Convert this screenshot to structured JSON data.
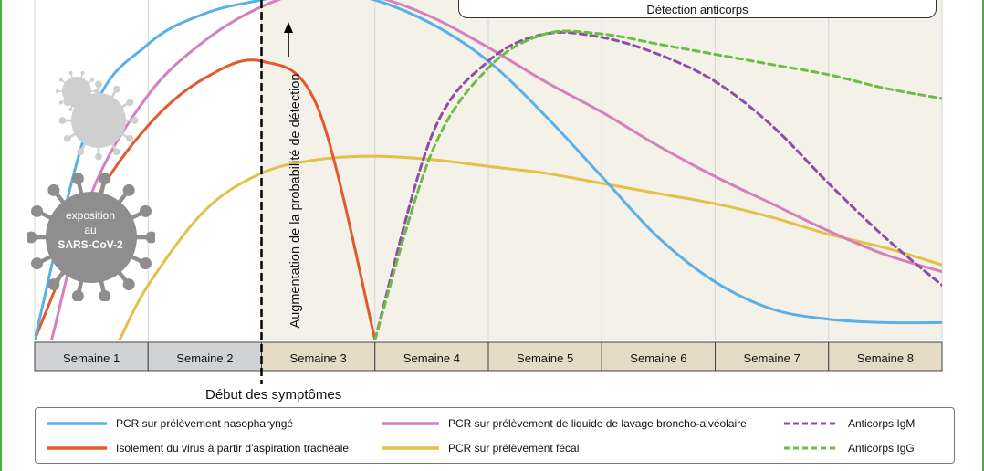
{
  "chart_data": {
    "type": "line",
    "x_unit": "week",
    "xlim": [
      0,
      8
    ],
    "ylim": [
      0,
      1
    ],
    "categories": [
      "Semaine 1",
      "Semaine 2",
      "Semaine 3",
      "Semaine 4",
      "Semaine 5",
      "Semaine 6",
      "Semaine 7",
      "Semaine 8"
    ],
    "symptom_onset_week": 2.0,
    "onset_label": "Début des symptômes",
    "arrow_label": "Augmentation de la probabilité de détection",
    "antibody_banner": "Détection anticorps",
    "exposure_label": [
      "exposition",
      "au",
      "SARS-CoV-2"
    ],
    "series": [
      {
        "name": "PCR sur prélèvement nasopharyngé",
        "color": "#5bb0e8",
        "dash": false,
        "points": [
          [
            0,
            0
          ],
          [
            0.5,
            0.66
          ],
          [
            1,
            0.87
          ],
          [
            1.5,
            0.96
          ],
          [
            2,
            1.0
          ],
          [
            2.5,
            1.03
          ],
          [
            3,
            1.0
          ],
          [
            3.5,
            0.93
          ],
          [
            4,
            0.82
          ],
          [
            4.5,
            0.66
          ],
          [
            5,
            0.48
          ],
          [
            5.5,
            0.3
          ],
          [
            6,
            0.17
          ],
          [
            6.5,
            0.09
          ],
          [
            7,
            0.06
          ],
          [
            7.5,
            0.05
          ],
          [
            8,
            0.05
          ]
        ]
      },
      {
        "name": "PCR sur prélèvement de liquide de lavage broncho-alvéolaire",
        "color": "#d57fbc",
        "dash": false,
        "points": [
          [
            0.15,
            0
          ],
          [
            0.5,
            0.43
          ],
          [
            1,
            0.72
          ],
          [
            1.5,
            0.88
          ],
          [
            2,
            0.98
          ],
          [
            2.5,
            1.03
          ],
          [
            3,
            1.01
          ],
          [
            3.5,
            0.95
          ],
          [
            4,
            0.86
          ],
          [
            4.5,
            0.76
          ],
          [
            5,
            0.67
          ],
          [
            5.5,
            0.57
          ],
          [
            6,
            0.48
          ],
          [
            6.5,
            0.4
          ],
          [
            7,
            0.32
          ],
          [
            7.5,
            0.25
          ],
          [
            8,
            0.2
          ]
        ]
      },
      {
        "name": "Isolement du virus à partir d'aspiration trachéale",
        "color": "#e05a2b",
        "dash": false,
        "points": [
          [
            0,
            0
          ],
          [
            0.5,
            0.39
          ],
          [
            1,
            0.63
          ],
          [
            1.5,
            0.77
          ],
          [
            2,
            0.82
          ],
          [
            2.5,
            0.68
          ],
          [
            3,
            0
          ]
        ]
      },
      {
        "name": "PCR sur prélèvement fécal",
        "color": "#e2c04a",
        "dash": false,
        "points": [
          [
            0.75,
            0
          ],
          [
            1,
            0.16
          ],
          [
            1.5,
            0.38
          ],
          [
            2,
            0.49
          ],
          [
            2.5,
            0.53
          ],
          [
            3,
            0.54
          ],
          [
            3.5,
            0.53
          ],
          [
            4,
            0.51
          ],
          [
            4.5,
            0.49
          ],
          [
            5,
            0.46
          ],
          [
            5.5,
            0.43
          ],
          [
            6,
            0.4
          ],
          [
            6.5,
            0.36
          ],
          [
            7,
            0.31
          ],
          [
            7.5,
            0.27
          ],
          [
            8,
            0.22
          ]
        ]
      },
      {
        "name": "Anticorps IgM",
        "color": "#8b4fa6",
        "dash": true,
        "points": [
          [
            3,
            0
          ],
          [
            3.5,
            0.6
          ],
          [
            4,
            0.82
          ],
          [
            4.5,
            0.9
          ],
          [
            5,
            0.89
          ],
          [
            5.5,
            0.84
          ],
          [
            6,
            0.76
          ],
          [
            6.5,
            0.63
          ],
          [
            7,
            0.46
          ],
          [
            7.5,
            0.3
          ],
          [
            8,
            0.16
          ]
        ]
      },
      {
        "name": "Anticorps IgG",
        "color": "#6bbd46",
        "dash": true,
        "points": [
          [
            3,
            0
          ],
          [
            3.5,
            0.55
          ],
          [
            4,
            0.8
          ],
          [
            4.5,
            0.9
          ],
          [
            5,
            0.9
          ],
          [
            5.5,
            0.87
          ],
          [
            6,
            0.84
          ],
          [
            6.5,
            0.81
          ],
          [
            7,
            0.78
          ],
          [
            7.5,
            0.74
          ],
          [
            8,
            0.71
          ]
        ]
      }
    ]
  },
  "colors": {
    "week_pre": "#d0d2d4",
    "week_post": "#e4dac6",
    "plot_pre": "#ffffff",
    "plot_post": "#f4f1e8",
    "frame_green": "#4caf3d",
    "virus_gray": "#8e8e8e",
    "virus_light": "#cfcfcf"
  }
}
